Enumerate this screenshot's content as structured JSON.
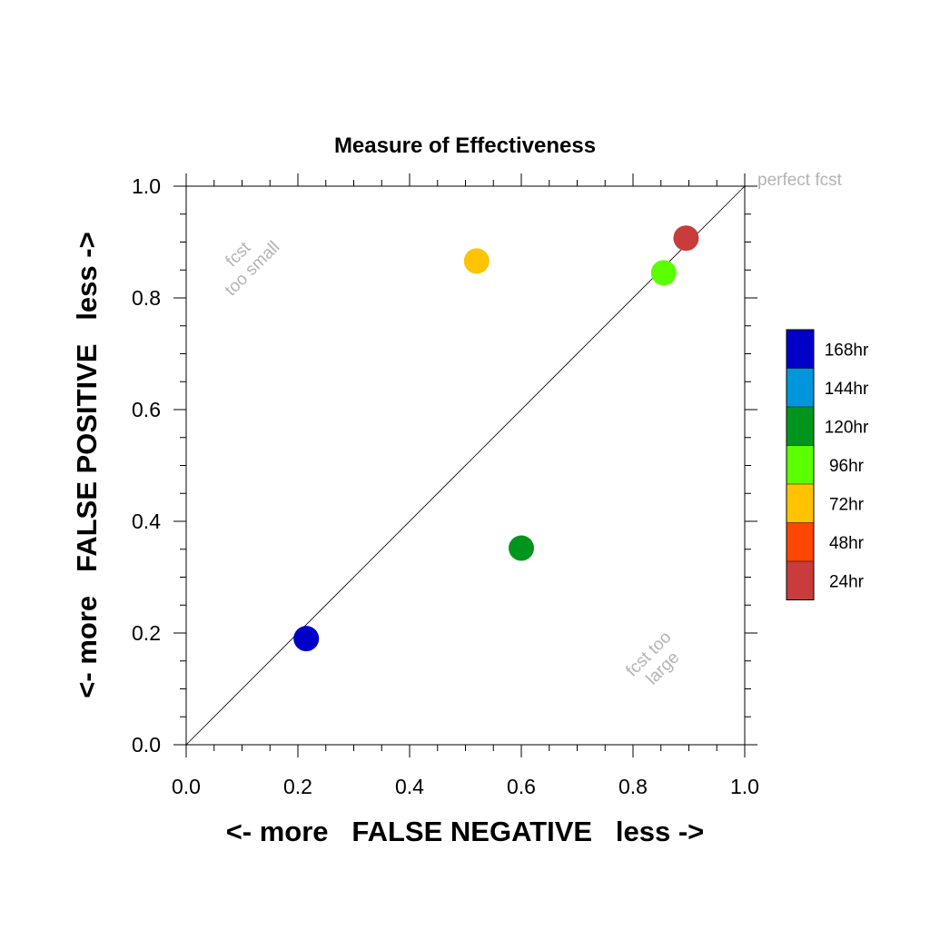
{
  "chart_data": {
    "type": "scatter",
    "title": "Measure of Effectiveness",
    "xlabel": "<- more   FALSE NEGATIVE   less ->",
    "ylabel": "<- more   FALSE POSITIVE   less ->",
    "xlim": [
      0,
      1
    ],
    "ylim": [
      0,
      1
    ],
    "x_ticks": [
      "0.0",
      "0.2",
      "0.4",
      "0.6",
      "0.8",
      "1.0"
    ],
    "y_ticks": [
      "0.0",
      "0.2",
      "0.4",
      "0.6",
      "0.8",
      "1.0"
    ],
    "reference_line": "y = x",
    "points": [
      {
        "name": "168hr",
        "x": 0.215,
        "y": 0.19,
        "color": "#0000c8"
      },
      {
        "name": "120hr",
        "x": 0.6,
        "y": 0.352,
        "color": "#00961e"
      },
      {
        "name": "72hr",
        "x": 0.52,
        "y": 0.866,
        "color": "#ffc300"
      },
      {
        "name": "96hr",
        "x": 0.855,
        "y": 0.845,
        "color": "#5aff00"
      },
      {
        "name": "24hr",
        "x": 0.895,
        "y": 0.907,
        "color": "#c83c3c"
      }
    ],
    "legend": [
      {
        "label": "168hr",
        "color": "#0000c8"
      },
      {
        "label": "144hr",
        "color": "#0096dc"
      },
      {
        "label": "120hr",
        "color": "#00961e"
      },
      {
        "label": "96hr",
        "color": "#5aff00"
      },
      {
        "label": "72hr",
        "color": "#ffc300"
      },
      {
        "label": "48hr",
        "color": "#ff4600"
      },
      {
        "label": "24hr",
        "color": "#c83c3c"
      }
    ],
    "legend_position": "right",
    "annotations": {
      "perfect": "perfect fcst",
      "small_line1": "fcst",
      "small_line2": "too small",
      "large_line1": "fcst too",
      "large_line2": "large"
    }
  }
}
